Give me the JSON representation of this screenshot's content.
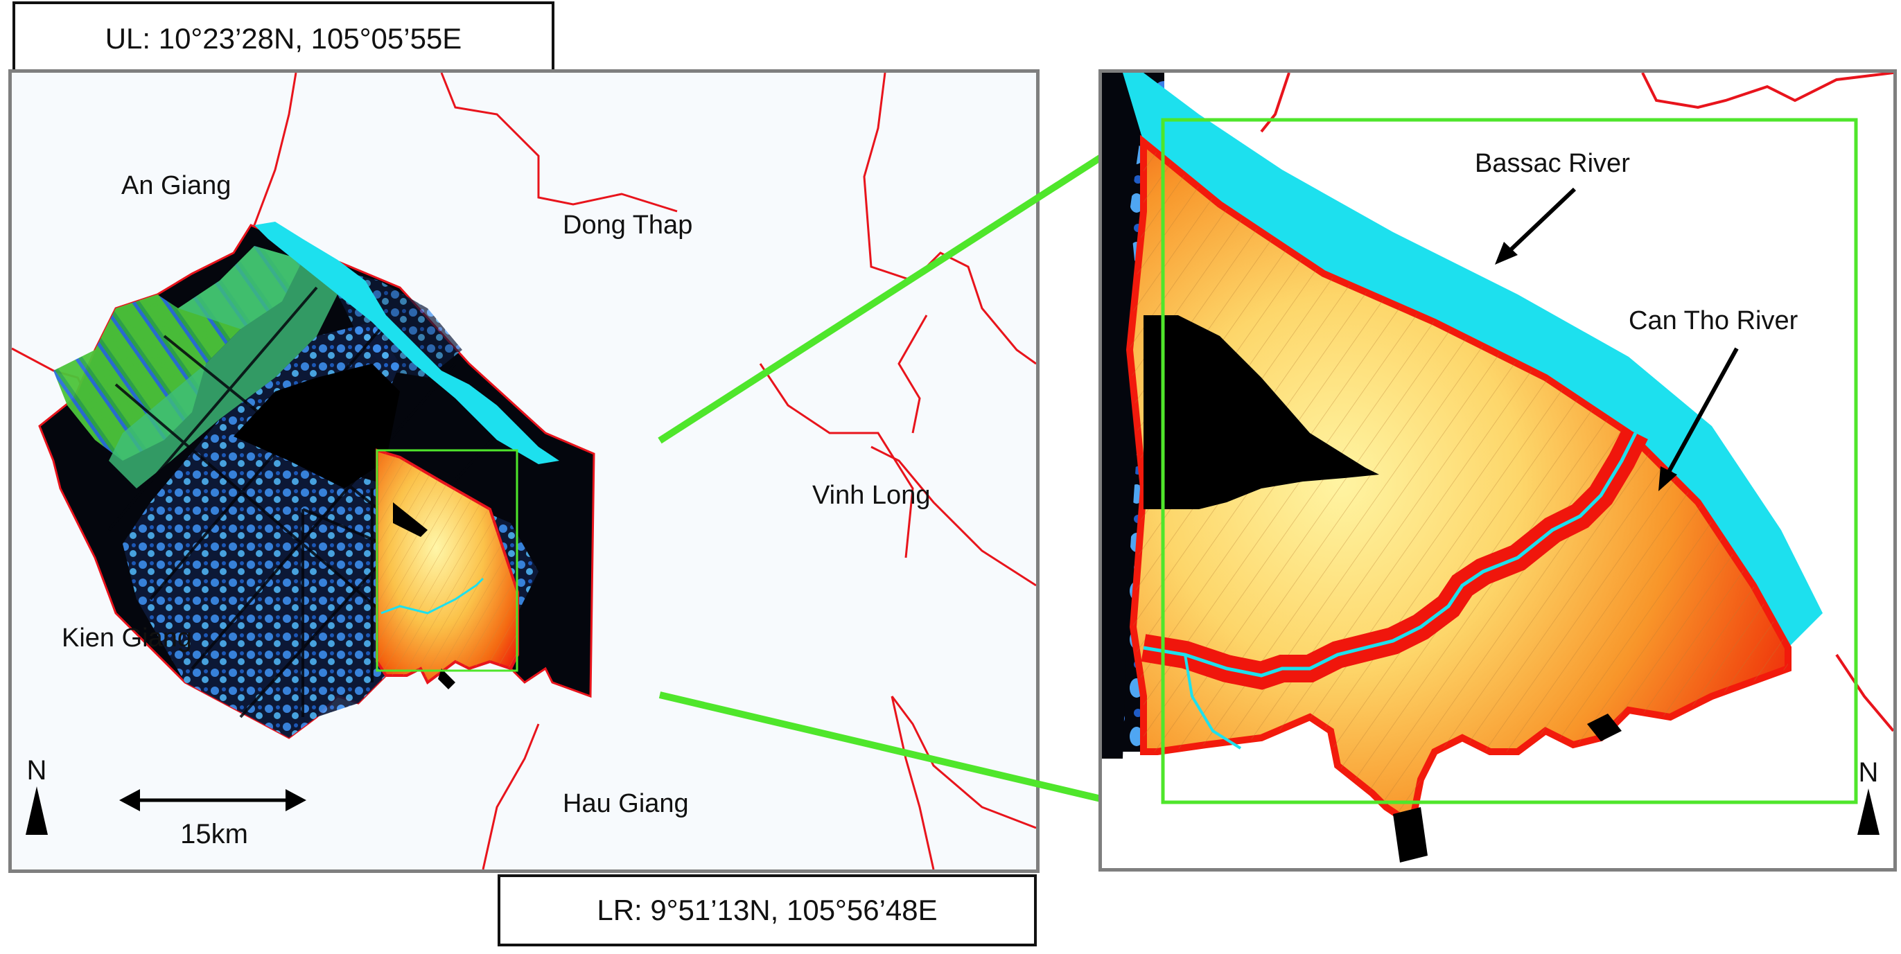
{
  "corners": {
    "upper_left": "UL: 10°23’28N, 105°05’55E",
    "lower_right": "LR: 9°51’13N, 105°56’48E"
  },
  "main_map": {
    "regions": {
      "an_giang": "An Giang",
      "dong_thap": "Dong Thap",
      "vinh_long": "Vinh Long",
      "kien_giang": "Kien Giang",
      "hau_giang": "Hau Giang"
    },
    "north_label": "N",
    "scale_label": "15km"
  },
  "inset_map": {
    "labels": {
      "bassac_river": "Bassac River",
      "can_tho_river": "Can Tho River"
    },
    "north_label": "N"
  },
  "colors": {
    "boundary": "#e8141c",
    "river": "#1de0ee",
    "highlight": "#4fe62b",
    "dark": "#04060d",
    "field_green": "#40b83a",
    "field_blue": "#3b8ef0",
    "gradient_outer": "#f21a0c",
    "gradient_inner": "#fff3a0"
  }
}
